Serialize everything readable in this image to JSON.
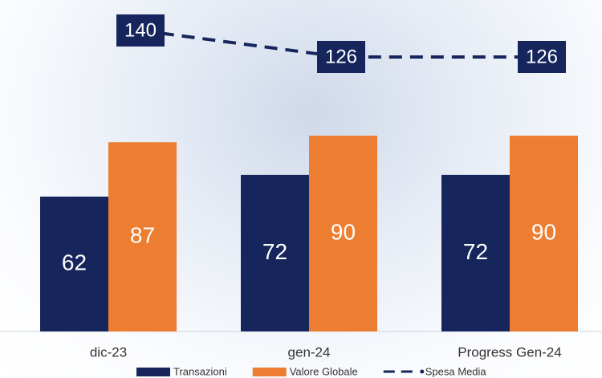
{
  "chart_data": {
    "type": "bar-line",
    "categories": [
      "dic-23",
      "gen-24",
      "Progress Gen-24"
    ],
    "series": [
      {
        "name": "Transazioni",
        "color": "#16255c",
        "values": [
          62,
          72,
          72
        ]
      },
      {
        "name": "Valore Globale",
        "color": "#ed7d31",
        "values": [
          87,
          90,
          90
        ]
      },
      {
        "name": "Spesa Media",
        "color": "#16255c",
        "values": [
          140,
          126,
          126
        ],
        "axis": "y2",
        "style": "dashed"
      }
    ],
    "legend": "bottom"
  }
}
